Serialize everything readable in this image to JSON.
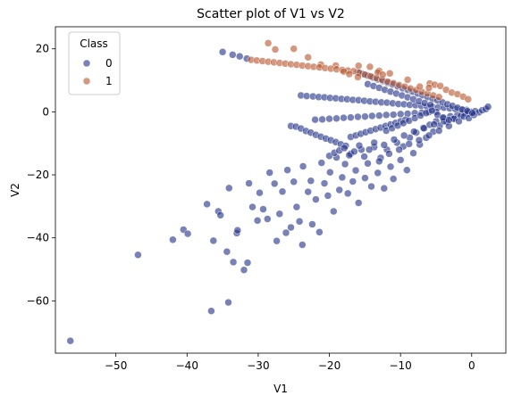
{
  "chart_data": {
    "type": "scatter",
    "title": "Scatter plot of V1 vs V2",
    "xlabel": "V1",
    "ylabel": "V2",
    "xlim": [
      -58.5,
      4.8
    ],
    "ylim": [
      -76.6,
      27
    ],
    "xticks": [
      -50,
      -40,
      -30,
      -20,
      -10,
      0
    ],
    "yticks": [
      -60,
      -40,
      -20,
      0,
      20
    ],
    "xtick_labels": [
      "−50",
      "−40",
      "−30",
      "−20",
      "−10",
      "0"
    ],
    "ytick_labels": [
      "−60",
      "−40",
      "−20",
      "0",
      "20"
    ],
    "grid": false,
    "legend": {
      "title": "Class",
      "placement": "top-left",
      "entries": [
        "0",
        "1"
      ]
    },
    "colors": {
      "class_0": "#1f2f86",
      "class_1": "#b5532a"
    },
    "series": [
      {
        "name": "0",
        "points": [
          [
            -56.4,
            -72.7
          ],
          [
            -46.9,
            -45.4
          ],
          [
            -42,
            -40.6
          ],
          [
            -40.5,
            -37.4
          ],
          [
            -39.9,
            -38.7
          ],
          [
            -37.2,
            -29.3
          ],
          [
            -36.6,
            -63.2
          ],
          [
            -36.3,
            -40.9
          ],
          [
            -35.6,
            -31.6
          ],
          [
            -35.3,
            -32.8
          ],
          [
            -34.4,
            -44.4
          ],
          [
            -34.2,
            -60.5
          ],
          [
            -34.1,
            -24.2
          ],
          [
            -33.5,
            -47.7
          ],
          [
            -33.0,
            -38.5
          ],
          [
            -32.9,
            -37.6
          ],
          [
            -32.0,
            -50.2
          ],
          [
            -31.5,
            -47.9
          ],
          [
            -31.3,
            -22.7
          ],
          [
            -30.8,
            -30.2
          ],
          [
            -30.1,
            -34.5
          ],
          [
            -29.8,
            -25.7
          ],
          [
            -29.3,
            -30.9
          ],
          [
            -28.7,
            -34.0
          ],
          [
            -28.4,
            -19.3
          ],
          [
            -27.7,
            -22.8
          ],
          [
            -27.4,
            -41.0
          ],
          [
            -27.0,
            -32.4
          ],
          [
            -26.6,
            -25.3
          ],
          [
            -26.1,
            -38.4
          ],
          [
            -25.9,
            -18.5
          ],
          [
            -25.4,
            -36.7
          ],
          [
            -25.0,
            -22.2
          ],
          [
            -24.6,
            -30.2
          ],
          [
            -24.2,
            -34.8
          ],
          [
            -23.8,
            -42.2
          ],
          [
            -23.7,
            -17.3
          ],
          [
            -23.0,
            -25.4
          ],
          [
            -22.6,
            -21.9
          ],
          [
            -22.4,
            -35.7
          ],
          [
            -21.9,
            -27.8
          ],
          [
            -21.4,
            -38.2
          ],
          [
            -21.1,
            -16.2
          ],
          [
            -20.7,
            -22.7
          ],
          [
            -20.2,
            -26.6
          ],
          [
            -19.9,
            -19.2
          ],
          [
            -19.4,
            -31.6
          ],
          [
            -19.0,
            -14.5
          ],
          [
            -18.6,
            -24.8
          ],
          [
            -18.2,
            -20.8
          ],
          [
            -17.8,
            -16.6
          ],
          [
            -17.4,
            -25.9
          ],
          [
            -17.0,
            -13.3
          ],
          [
            -16.7,
            -22.1
          ],
          [
            -16.3,
            -18.6
          ],
          [
            -15.9,
            -28.9
          ],
          [
            -15.5,
            -12.0
          ],
          [
            -15.0,
            -21.0
          ],
          [
            -14.6,
            -16.4
          ],
          [
            -14.1,
            -23.7
          ],
          [
            -13.7,
            -11.2
          ],
          [
            -13.2,
            -19.4
          ],
          [
            -12.8,
            -14.6
          ],
          [
            -12.3,
            -24.3
          ],
          [
            -11.9,
            -12.0
          ],
          [
            -11.4,
            -17.4
          ],
          [
            -11.0,
            -21.3
          ],
          [
            -10.5,
            -9.8
          ],
          [
            -10.0,
            -15.3
          ],
          [
            -9.6,
            -11.0
          ],
          [
            -9.1,
            -18.5
          ],
          [
            -8.7,
            -8.2
          ],
          [
            -8.2,
            -13.1
          ],
          [
            -7.8,
            -6.6
          ],
          [
            -7.3,
            -10.4
          ],
          [
            -6.8,
            -5.1
          ],
          [
            -6.4,
            -8.2
          ],
          [
            -5.9,
            -4.1
          ],
          [
            -5.4,
            -6.3
          ],
          [
            -5.0,
            -3.0
          ],
          [
            -4.5,
            -4.4
          ],
          [
            -4.0,
            -2.1
          ],
          [
            -3.5,
            -3.2
          ],
          [
            -3.0,
            -1.4
          ],
          [
            -2.5,
            -2.1
          ],
          [
            -2.0,
            -0.9
          ],
          [
            -1.5,
            -1.2
          ],
          [
            -1.0,
            -0.4
          ],
          [
            -0.5,
            -0.5
          ],
          [
            0.0,
            0.0
          ],
          [
            0.5,
            0.2
          ],
          [
            1.0,
            -0.2
          ],
          [
            1.5,
            0.5
          ],
          [
            2.0,
            0.9
          ],
          [
            2.3,
            1.6
          ],
          [
            -35.0,
            19.0
          ],
          [
            -33.6,
            18.1
          ],
          [
            -32.6,
            17.6
          ],
          [
            -31.6,
            16.9
          ],
          [
            -24.0,
            5.2
          ],
          [
            -23.2,
            5.0
          ],
          [
            -22.3,
            4.9
          ],
          [
            -21.5,
            4.7
          ],
          [
            -20.7,
            4.6
          ],
          [
            -19.9,
            4.4
          ],
          [
            -19.1,
            4.3
          ],
          [
            -18.3,
            4.1
          ],
          [
            -17.5,
            4.0
          ],
          [
            -16.7,
            3.8
          ],
          [
            -15.9,
            3.7
          ],
          [
            -15.1,
            3.5
          ],
          [
            -14.3,
            3.3
          ],
          [
            -13.5,
            3.2
          ],
          [
            -12.7,
            3.0
          ],
          [
            -11.9,
            2.9
          ],
          [
            -11.1,
            2.7
          ],
          [
            -10.3,
            2.5
          ],
          [
            -9.5,
            2.4
          ],
          [
            -8.7,
            2.2
          ],
          [
            -7.9,
            2.1
          ],
          [
            -7.1,
            1.9
          ],
          [
            -6.3,
            1.7
          ],
          [
            -5.5,
            1.6
          ],
          [
            -4.7,
            1.4
          ],
          [
            -3.9,
            1.3
          ],
          [
            -3.1,
            1.1
          ],
          [
            -2.3,
            0.9
          ],
          [
            -1.5,
            0.8
          ],
          [
            -0.7,
            0.6
          ],
          [
            -22.0,
            -2.5
          ],
          [
            -21.0,
            -2.4
          ],
          [
            -20.0,
            -2.2
          ],
          [
            -19.0,
            -2.1
          ],
          [
            -18.0,
            -1.9
          ],
          [
            -17.0,
            -1.8
          ],
          [
            -16.0,
            -1.6
          ],
          [
            -15.0,
            -1.5
          ],
          [
            -14.0,
            -1.3
          ],
          [
            -13.0,
            -1.2
          ],
          [
            -12.0,
            -1.0
          ],
          [
            -11.0,
            -0.9
          ],
          [
            -10.0,
            -0.7
          ],
          [
            -9.0,
            -0.6
          ],
          [
            -8.0,
            -0.4
          ],
          [
            -7.0,
            -0.3
          ],
          [
            -6.0,
            -0.1
          ],
          [
            -5.0,
            0.0
          ],
          [
            -25.4,
            -4.5
          ],
          [
            -24.7,
            -4.7
          ],
          [
            -24.0,
            -5.3
          ],
          [
            -23.3,
            -6.1
          ],
          [
            -22.6,
            -6.6
          ],
          [
            -21.9,
            -7.3
          ],
          [
            -21.2,
            -7.9
          ],
          [
            -20.5,
            -8.5
          ],
          [
            -19.8,
            -9.0
          ],
          [
            -19.1,
            -9.6
          ],
          [
            -18.4,
            -10.3
          ],
          [
            -17.7,
            -10.8
          ],
          [
            -17.0,
            -8.0
          ],
          [
            -16.3,
            -7.5
          ],
          [
            -15.6,
            -7.0
          ],
          [
            -14.9,
            -6.5
          ],
          [
            -14.2,
            -6.0
          ],
          [
            -13.5,
            -5.5
          ],
          [
            -12.8,
            -5.0
          ],
          [
            -12.1,
            -4.5
          ],
          [
            -11.4,
            -4.0
          ],
          [
            -10.7,
            -3.5
          ],
          [
            -10.0,
            -3.0
          ],
          [
            -9.3,
            -2.5
          ],
          [
            -20.0,
            -14.0
          ],
          [
            -19.3,
            -13.0
          ],
          [
            -18.6,
            -12.3
          ],
          [
            -17.9,
            -11.5
          ],
          [
            -17.2,
            -13.8
          ],
          [
            -16.5,
            -12.6
          ],
          [
            -15.8,
            -10.7
          ],
          [
            -15.1,
            -14.2
          ],
          [
            -14.4,
            -12.0
          ],
          [
            -13.7,
            -9.8
          ],
          [
            -13.0,
            -15.7
          ],
          [
            -12.3,
            -10.5
          ],
          [
            -11.6,
            -13.3
          ],
          [
            -10.9,
            -8.8
          ],
          [
            -10.2,
            -12.0
          ],
          [
            -9.5,
            -7.5
          ],
          [
            -8.8,
            -10.2
          ],
          [
            -8.1,
            -6.3
          ],
          [
            -7.4,
            -9.0
          ],
          [
            -6.7,
            -5.2
          ],
          [
            -6.0,
            -7.5
          ],
          [
            -5.3,
            -4.0
          ],
          [
            -4.6,
            -6.0
          ],
          [
            -3.9,
            -3.0
          ],
          [
            -3.2,
            -4.5
          ],
          [
            -2.5,
            -2.2
          ],
          [
            -1.8,
            -3.0
          ],
          [
            -1.1,
            -1.5
          ],
          [
            -0.4,
            -2.0
          ],
          [
            0.3,
            -1.0
          ],
          [
            -16.0,
            12.6
          ],
          [
            -15.3,
            12.0
          ],
          [
            -14.6,
            11.5
          ],
          [
            -13.9,
            10.9
          ],
          [
            -13.2,
            10.3
          ],
          [
            -12.5,
            9.8
          ],
          [
            -11.8,
            9.2
          ],
          [
            -11.1,
            8.7
          ],
          [
            -10.4,
            8.1
          ],
          [
            -9.7,
            7.5
          ],
          [
            -9.0,
            7.0
          ],
          [
            -8.3,
            6.4
          ],
          [
            -7.6,
            5.8
          ],
          [
            -6.9,
            5.3
          ],
          [
            -6.2,
            4.7
          ],
          [
            -5.5,
            4.1
          ],
          [
            -4.8,
            3.6
          ],
          [
            -4.1,
            3.0
          ],
          [
            -3.4,
            2.4
          ],
          [
            -2.7,
            1.9
          ],
          [
            -2.0,
            1.3
          ],
          [
            -1.3,
            0.7
          ],
          [
            -0.6,
            0.2
          ],
          [
            0.1,
            -0.4
          ],
          [
            -14.6,
            8.8
          ],
          [
            -13.8,
            8.2
          ],
          [
            -13.0,
            7.6
          ],
          [
            -12.2,
            7.0
          ],
          [
            -11.4,
            6.4
          ],
          [
            -10.6,
            5.8
          ],
          [
            -9.8,
            5.2
          ],
          [
            -9.0,
            4.6
          ],
          [
            -8.2,
            4.0
          ],
          [
            -7.4,
            3.4
          ],
          [
            -6.6,
            2.8
          ],
          [
            -5.8,
            2.2
          ],
          [
            -12.0,
            -6.0
          ],
          [
            -11.2,
            -5.2
          ],
          [
            -10.4,
            -4.4
          ],
          [
            -9.6,
            -3.6
          ],
          [
            -8.8,
            -2.8
          ],
          [
            -8.0,
            -2.0
          ],
          [
            -7.2,
            -1.2
          ],
          [
            -6.4,
            -0.4
          ],
          [
            -5.6,
            0.4
          ],
          [
            -4.8,
            -1.0
          ],
          [
            -4.0,
            -1.8
          ],
          [
            -3.2,
            -2.6
          ]
        ]
      },
      {
        "name": "1",
        "points": [
          [
            -28.6,
            21.8
          ],
          [
            -27.6,
            19.8
          ],
          [
            -25.0,
            20.0
          ],
          [
            -23.0,
            17.3
          ],
          [
            -21.2,
            15.0
          ],
          [
            -19.1,
            14.7
          ],
          [
            -15.9,
            14.6
          ],
          [
            -14.3,
            14.3
          ],
          [
            -13.0,
            13.0
          ],
          [
            -11.5,
            12.2
          ],
          [
            -31.0,
            16.5
          ],
          [
            -30.2,
            16.3
          ],
          [
            -29.4,
            16.1
          ],
          [
            -28.6,
            15.9
          ],
          [
            -27.8,
            15.7
          ],
          [
            -27.0,
            15.5
          ],
          [
            -26.2,
            15.3
          ],
          [
            -25.4,
            15.1
          ],
          [
            -24.6,
            14.9
          ],
          [
            -23.8,
            14.7
          ],
          [
            -23.0,
            14.5
          ],
          [
            -22.2,
            14.3
          ],
          [
            -21.4,
            14.1
          ],
          [
            -20.6,
            13.9
          ],
          [
            -19.8,
            13.7
          ],
          [
            -19.0,
            13.5
          ],
          [
            -18.2,
            13.3
          ],
          [
            -17.4,
            13.1
          ],
          [
            -16.6,
            12.9
          ],
          [
            -15.8,
            12.4
          ],
          [
            -15.0,
            11.8
          ],
          [
            -14.2,
            11.3
          ],
          [
            -13.4,
            10.7
          ],
          [
            -12.6,
            10.2
          ],
          [
            -11.8,
            9.6
          ],
          [
            -11.0,
            9.1
          ],
          [
            -10.2,
            8.5
          ],
          [
            -9.4,
            8.0
          ],
          [
            -8.6,
            7.4
          ],
          [
            -7.8,
            6.9
          ],
          [
            -7.0,
            6.3
          ],
          [
            -6.2,
            5.8
          ],
          [
            -5.4,
            5.2
          ],
          [
            -4.6,
            4.7
          ],
          [
            -18.0,
            12.8
          ],
          [
            -17.2,
            12.0
          ],
          [
            -16.0,
            11.0
          ],
          [
            -13.2,
            12.5
          ],
          [
            -12.5,
            11.8
          ],
          [
            -5.9,
            9.0
          ],
          [
            -5.2,
            8.6
          ],
          [
            -4.4,
            8.2
          ],
          [
            -3.6,
            7.0
          ],
          [
            -2.8,
            6.1
          ],
          [
            -2.0,
            5.6
          ],
          [
            -1.2,
            4.8
          ],
          [
            -0.5,
            4.0
          ],
          [
            -6.0,
            7.6
          ],
          [
            -7.3,
            8.0
          ],
          [
            -9.0,
            10.2
          ]
        ]
      }
    ]
  }
}
